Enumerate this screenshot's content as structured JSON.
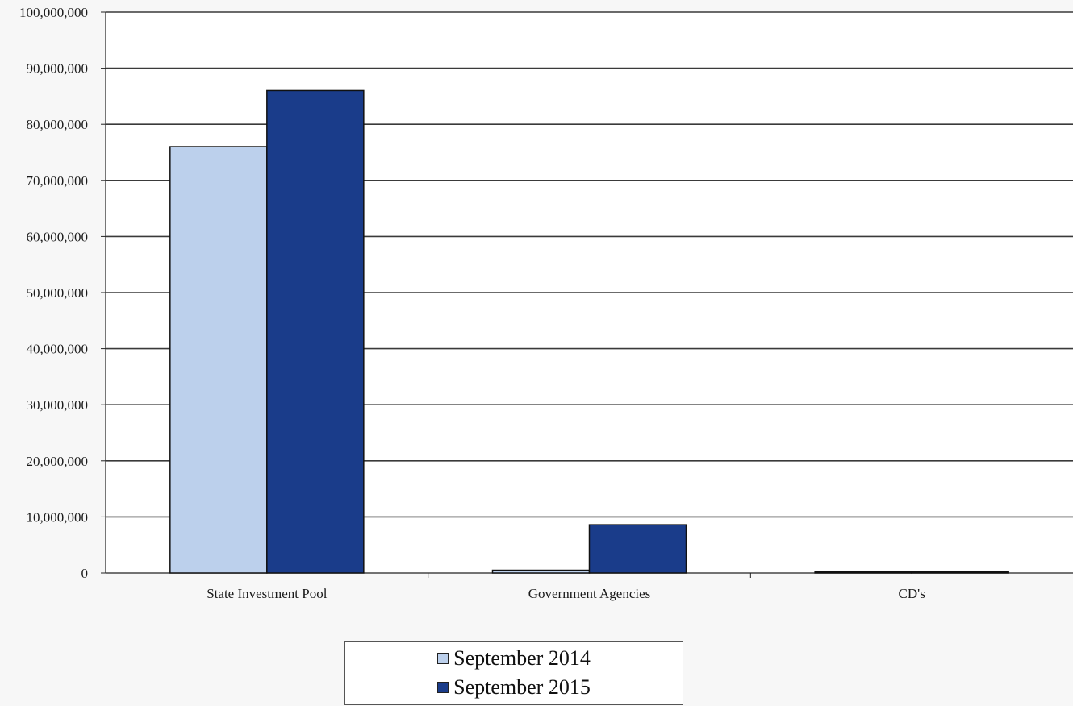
{
  "chart_data": {
    "type": "bar",
    "categories": [
      "State Investment Pool",
      "Government Agencies",
      "CD's"
    ],
    "series": [
      {
        "name": "September 2014",
        "values": [
          76000000,
          500000,
          100000
        ],
        "color": "#bcd0ec"
      },
      {
        "name": "September 2015",
        "values": [
          86000000,
          8600000,
          100000
        ],
        "color": "#1a3c8a"
      }
    ],
    "ylim": [
      0,
      100000000
    ],
    "yticks": [
      0,
      10000000,
      20000000,
      30000000,
      40000000,
      50000000,
      60000000,
      70000000,
      80000000,
      90000000,
      100000000
    ],
    "ytick_labels": [
      "0",
      "10,000,000",
      "20,000,000",
      "30,000,000",
      "40,000,000",
      "50,000,000",
      "60,000,000",
      "70,000,000",
      "80,000,000",
      "90,000,000",
      "100,000,000"
    ],
    "grid": true,
    "legend_position": "bottom-center"
  }
}
